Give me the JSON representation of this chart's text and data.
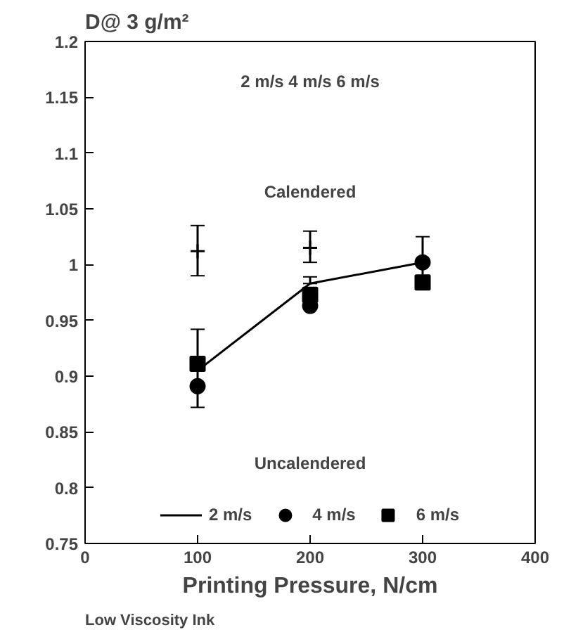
{
  "chart_data": {
    "type": "scatter",
    "title": "D@ 3 g/m²",
    "xlabel": "Printing Pressure, N/cm",
    "x": [
      100,
      200,
      300
    ],
    "series": [
      {
        "color": "#000000",
        "marker": "cross",
        "values": [
          1.012,
          1.015,
          null
        ],
        "errors": [
          [
            0.99,
            1.035
          ],
          [
            1.002,
            1.03
          ],
          null
        ]
      },
      {
        "type": "line",
        "name": "2 m/s",
        "color": "#000000",
        "marker": "none",
        "values": [
          0.905,
          0.983,
          1.002
        ],
        "errors": [
          [
            0.872,
            0.942
          ],
          [
            0.983,
            0.989
          ],
          [
            0.99,
            1.025
          ]
        ]
      },
      {
        "name": "4 m/s",
        "color": "#000000",
        "marker": "circle",
        "values": [
          0.891,
          0.963,
          1.002
        ]
      },
      {
        "name": "6 m/s",
        "color": "#000000",
        "marker": "square",
        "values": [
          0.911,
          0.973,
          0.984
        ]
      }
    ],
    "xlim": [
      0,
      400
    ],
    "ylim": [
      0.75,
      1.2
    ],
    "xticks": [
      0,
      100,
      200,
      300,
      400
    ],
    "yticks": [
      0.75,
      0.8,
      0.85,
      0.9,
      0.95,
      1,
      1.05,
      1.1,
      1.15,
      1.2
    ],
    "annotations": [
      "2 m/s 4 m/s 6 m/s",
      "Calendered",
      "Uncalendered",
      "Low Viscosity Ink"
    ],
    "grid": false,
    "legend": "bottom"
  }
}
